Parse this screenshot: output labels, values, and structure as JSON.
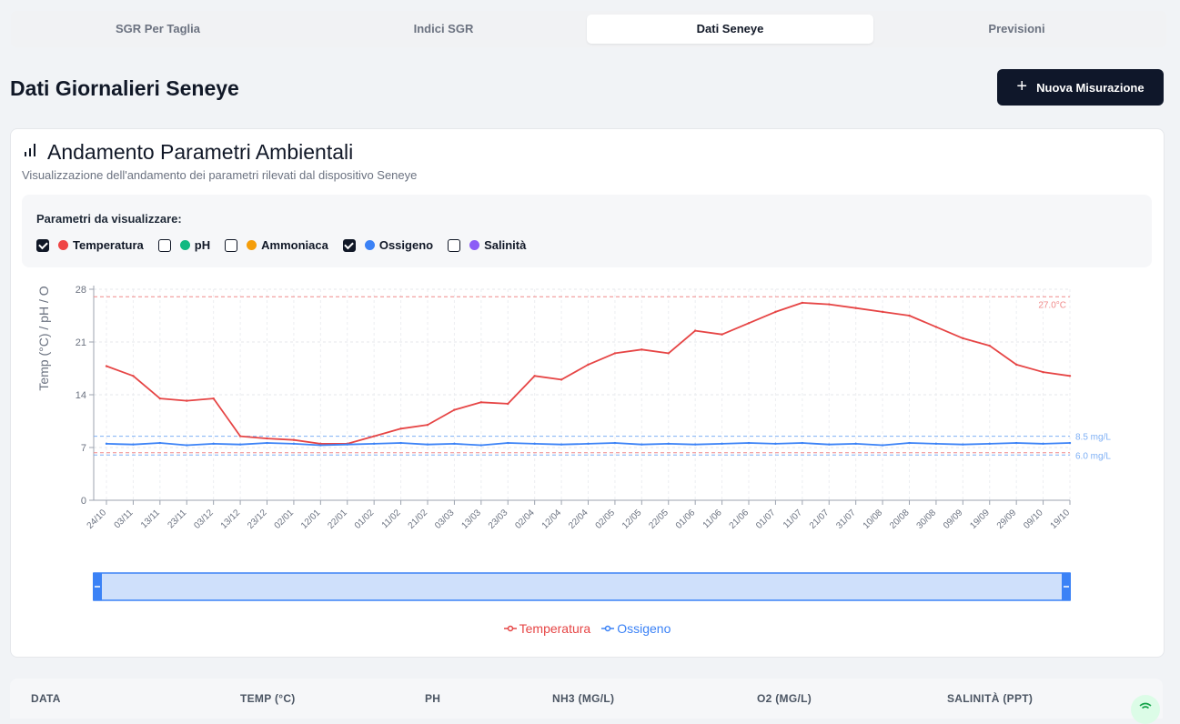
{
  "tabs": [
    {
      "label": "SGR Per Taglia",
      "active": false
    },
    {
      "label": "Indici SGR",
      "active": false
    },
    {
      "label": "Dati Seneye",
      "active": true
    },
    {
      "label": "Previsioni",
      "active": false
    }
  ],
  "header": {
    "title": "Dati Giornalieri Seneye",
    "new_button_label": "Nuova Misurazione",
    "new_button_icon": "plus-icon"
  },
  "card": {
    "icon": "bar-chart-icon",
    "title": "Andamento Parametri Ambientali",
    "subtitle": "Visualizzazione dell'andamento dei parametri rilevati dal dispositivo Seneye",
    "filters_label": "Parametri da visualizzare:",
    "parameters": [
      {
        "label": "Temperatura",
        "checked": true,
        "color": "#ef4444"
      },
      {
        "label": "pH",
        "checked": false,
        "color": "#10b981"
      },
      {
        "label": "Ammoniaca",
        "checked": false,
        "color": "#f59e0b"
      },
      {
        "label": "Ossigeno",
        "checked": true,
        "color": "#3b82f6"
      },
      {
        "label": "Salinità",
        "checked": false,
        "color": "#8b5cf6"
      }
    ]
  },
  "chart_data": {
    "type": "line",
    "ylabel": "Temp (°C) / pH / O",
    "ylim": [
      0,
      28
    ],
    "yticks": [
      0,
      7,
      14,
      21,
      28
    ],
    "grid": true,
    "legend_position": "bottom",
    "x": [
      "24/10",
      "03/11",
      "13/11",
      "23/11",
      "03/12",
      "13/12",
      "23/12",
      "02/01",
      "12/01",
      "22/01",
      "01/02",
      "11/02",
      "21/02",
      "03/03",
      "13/03",
      "23/03",
      "02/04",
      "12/04",
      "22/04",
      "02/05",
      "12/05",
      "22/05",
      "01/06",
      "11/06",
      "21/06",
      "01/07",
      "11/07",
      "21/07",
      "31/07",
      "10/08",
      "20/08",
      "30/08",
      "09/09",
      "19/09",
      "29/09",
      "09/10",
      "19/10"
    ],
    "series": [
      {
        "name": "Temperatura",
        "color": "#e64545",
        "values": [
          17.8,
          16.5,
          13.5,
          13.2,
          13.5,
          8.5,
          8.2,
          8.0,
          7.5,
          7.5,
          8.5,
          9.5,
          10.0,
          12.0,
          13.0,
          12.8,
          16.5,
          16.0,
          18.0,
          19.5,
          20.0,
          19.5,
          22.5,
          22.0,
          23.5,
          25.0,
          26.2,
          26.0,
          25.5,
          25.0,
          24.5,
          23.0,
          21.5,
          20.5,
          18.0,
          17.0,
          16.5
        ]
      },
      {
        "name": "Ossigeno",
        "color": "#3b82f6",
        "values": [
          7.5,
          7.4,
          7.6,
          7.3,
          7.5,
          7.4,
          7.6,
          7.5,
          7.3,
          7.4,
          7.5,
          7.6,
          7.4,
          7.5,
          7.3,
          7.6,
          7.5,
          7.4,
          7.5,
          7.6,
          7.4,
          7.5,
          7.4,
          7.5,
          7.6,
          7.5,
          7.6,
          7.4,
          7.5,
          7.3,
          7.6,
          7.5,
          7.4,
          7.5,
          7.6,
          7.5,
          7.6
        ]
      }
    ],
    "reference_lines": [
      {
        "label": "27.0°C",
        "value": 27.0,
        "color": "#f08a8a"
      },
      {
        "label": "8.5 mg/L",
        "value": 8.5,
        "color": "#7fb0f5"
      },
      {
        "label": "6.0 mg/L",
        "value": 6.0,
        "color": "#7fb0f5"
      },
      {
        "value": 6.3,
        "color": "#f08a8a"
      }
    ]
  },
  "table": {
    "columns": [
      "DATA",
      "TEMP (°C)",
      "PH",
      "NH3 (MG/L)",
      "O2 (MG/L)",
      "SALINITÀ (PPT)"
    ]
  }
}
